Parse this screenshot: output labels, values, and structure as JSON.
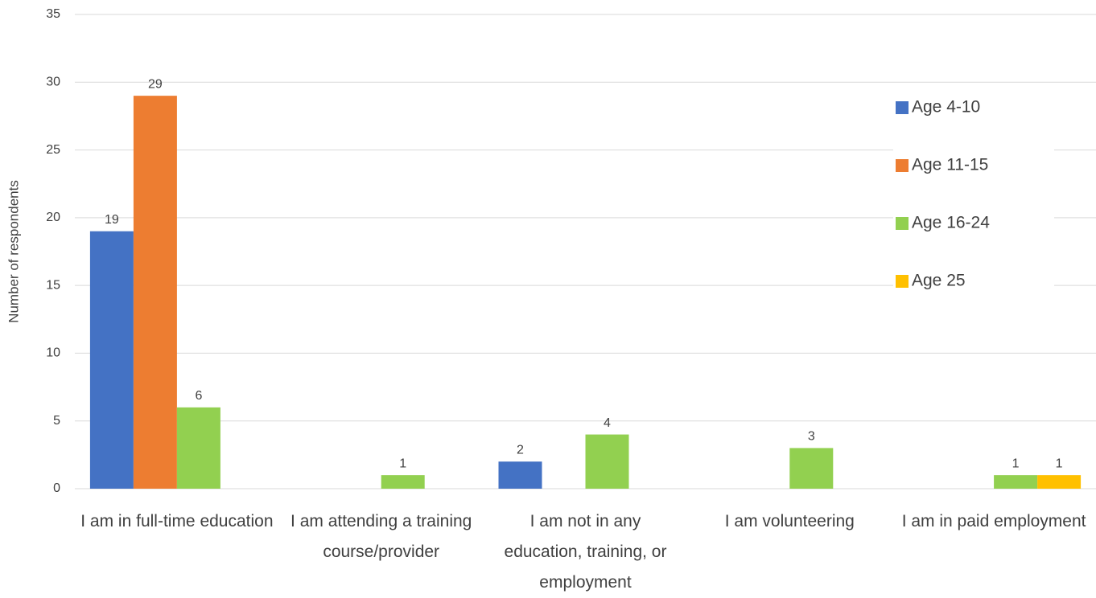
{
  "chart_data": {
    "type": "bar",
    "y_label": "Number of respondents",
    "categories": [
      "I am in full-time education",
      "I am attending a training course/provider",
      "I am not in any education, training, or employment",
      "I am volunteering",
      "I am in paid employment"
    ],
    "series": [
      {
        "name": "Age 4-10",
        "color": "#4472c4",
        "values": [
          19,
          null,
          2,
          null,
          null
        ]
      },
      {
        "name": "Age 11-15",
        "color": "#ed7d31",
        "values": [
          29,
          null,
          null,
          null,
          null
        ]
      },
      {
        "name": "Age 16-24",
        "color": "#92d050",
        "values": [
          6,
          1,
          4,
          3,
          1
        ]
      },
      {
        "name": "Age 25",
        "color": "#ffc000",
        "values": [
          null,
          null,
          null,
          null,
          1
        ]
      }
    ],
    "ylim": [
      0,
      35
    ],
    "yticks": [
      0,
      5,
      10,
      15,
      20,
      25,
      30,
      35
    ],
    "grid": true,
    "legend": "right"
  }
}
